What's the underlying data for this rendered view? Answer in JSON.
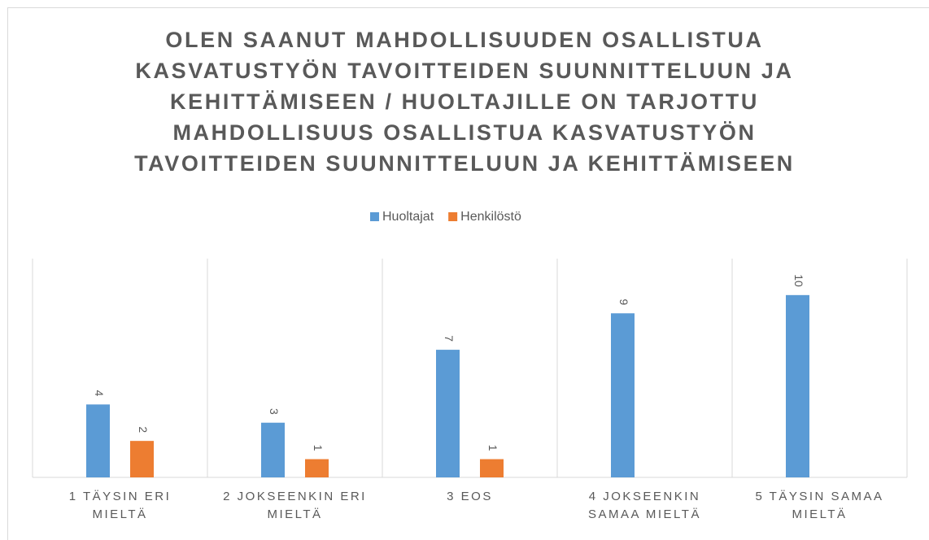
{
  "chart_data": {
    "type": "bar",
    "title": "OLEN SAANUT MAHDOLLISUUDEN OSALLISTUA KASVATUSTYÖN TAVOITTEIDEN SUUNNITTELUUN JA KEHITTÄMISEEN / HUOLTAJILLE ON TARJOTTU MAHDOLLISUUS OSALLISTUA KASVATUSTYÖN TAVOITTEIDEN SUUNNITTELUUN JA KEHITTÄMISEEN",
    "categories": [
      "1 TÄYSIN ERI MIELTÄ",
      "2 JOKSEENKIN ERI MIELTÄ",
      "3 EOS",
      "4 JOKSEENKIN SAMAA MIELTÄ",
      "5 TÄYSIN SAMAA MIELTÄ"
    ],
    "series": [
      {
        "name": "Huoltajat",
        "color": "#5b9bd5",
        "values": [
          4,
          3,
          7,
          9,
          10
        ]
      },
      {
        "name": "Henkilöstö",
        "color": "#ed7d31",
        "values": [
          2,
          1,
          1,
          null,
          null
        ]
      }
    ],
    "ylim": [
      0,
      12
    ],
    "legend": "top"
  }
}
